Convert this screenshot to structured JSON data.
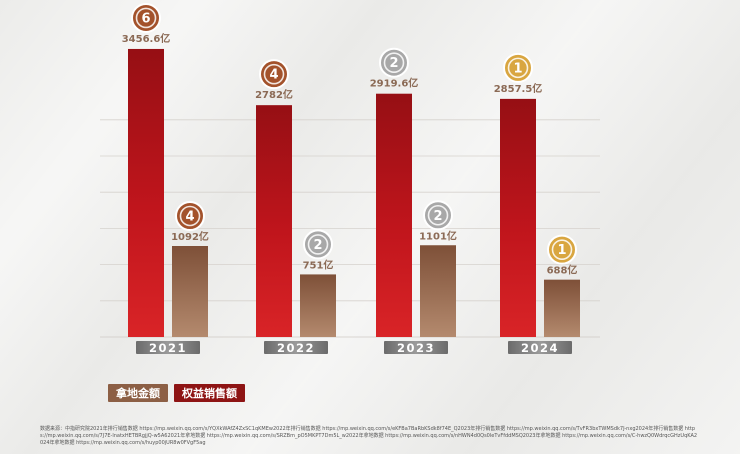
{
  "chart_data": {
    "type": "bar",
    "categories": [
      "2021",
      "2022",
      "2023",
      "2024"
    ],
    "series": [
      {
        "name": "权益销售额",
        "values": [
          3456.6,
          2782,
          2919.6,
          2857.5
        ],
        "labels": [
          "3456.6亿",
          "2782亿",
          "2919.6亿",
          "2857.5亿"
        ],
        "ranks": [
          "6",
          "4",
          "2",
          "1"
        ]
      },
      {
        "name": "拿地金额",
        "values": [
          1092,
          751,
          1101,
          688
        ],
        "labels": [
          "1092亿",
          "751亿",
          "1101亿",
          "688亿"
        ],
        "ranks": [
          "4",
          "2",
          "2",
          "1"
        ]
      }
    ],
    "ylim": [
      0,
      3600
    ],
    "grid": true,
    "legend_position": "bottom-left",
    "colors": {
      "sales": "#b3131a",
      "land": "#9a6a4f",
      "medal_gold": "#d9a640",
      "medal_silver": "#a8a8a8",
      "medal_bronze": "#a3522b"
    }
  },
  "legend": {
    "land": "拿地金额",
    "sales": "权益销售额"
  },
  "footnote": "数据来源：中指研究院2021年排行销售数据 https://mp.weixin.qq.com/s/YQXkWAfZ4ZxSC1qKMEw2022年排行销售数据 https://mp.weixin.qq.com/s/eKFBa7BaRbKSdk8f74E_Q2023年排行销售数据 https://mp.weixin.qq.com/s/TvFR3bxTWMSdk7J-nxg2024年排行销售数据 https://mp.weixin.qq.com/s/7J7E-lnatxHETBRgjjQ-w5A62021年拿地数据 https://mp.weixin.qq.com/s/SRZBm_pO5MKPT7Dm5L_w2022年拿地数据 https://mp.weixin.qq.com/s/nHWN4d0Qs0leTvFfddMSQ2023年拿地数据 https://mp.weixin.qq.com/s/C-hwzQ0WdrqcGHzUqKA2024年拿地数据 https://mp.weixin.qq.com/s/huyp00jUR8w0FVgF5ag"
}
